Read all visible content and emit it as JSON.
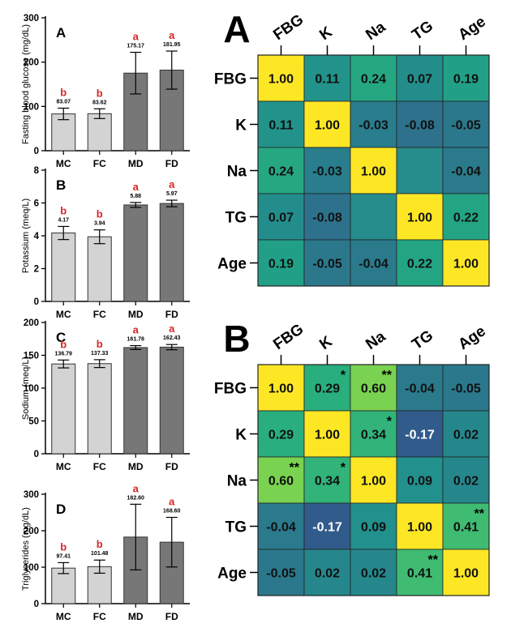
{
  "chart_data": [
    {
      "type": "bar",
      "panel": "A",
      "ylabel": "Fasting blood glucose (mg/dL)",
      "categories": [
        "MC",
        "FC",
        "MD",
        "FD"
      ],
      "values": [
        83.07,
        83.62,
        175.17,
        181.95
      ],
      "value_labels": [
        "83.07",
        "83.62",
        "175.17",
        "181.95"
      ],
      "errors": [
        13,
        11,
        47,
        43
      ],
      "letters": [
        "b",
        "b",
        "a",
        "a"
      ],
      "ylim": [
        0,
        300
      ],
      "yticks": [
        0,
        100,
        200,
        300
      ],
      "ytick_labels": [
        "0",
        "100",
        "200",
        "300"
      ],
      "bar_colors": [
        "#d3d3d3",
        "#d3d3d3",
        "#777777",
        "#777777"
      ]
    },
    {
      "type": "bar",
      "panel": "B",
      "ylabel": "Potassium (meq/L)",
      "categories": [
        "MC",
        "FC",
        "MD",
        "FD"
      ],
      "values": [
        4.17,
        3.94,
        5.88,
        5.97
      ],
      "value_labels": [
        "4.17",
        "3.94",
        "5.88",
        "5.97"
      ],
      "errors": [
        0.4,
        0.42,
        0.15,
        0.2
      ],
      "letters": [
        "b",
        "b",
        "a",
        "a"
      ],
      "ylim": [
        0,
        8
      ],
      "yticks": [
        0,
        2,
        4,
        6,
        8
      ],
      "ytick_labels": [
        "0",
        "2",
        "4",
        "6",
        "8"
      ],
      "bar_colors": [
        "#d3d3d3",
        "#d3d3d3",
        "#777777",
        "#777777"
      ]
    },
    {
      "type": "bar",
      "panel": "C",
      "ylabel": "Sodium (meq/L)",
      "categories": [
        "MC",
        "FC",
        "MD",
        "FD"
      ],
      "values": [
        136.79,
        137.33,
        161.78,
        162.43
      ],
      "value_labels": [
        "136.79",
        "137.33",
        "161.78",
        "162.43"
      ],
      "errors": [
        6,
        6,
        3,
        4
      ],
      "letters": [
        "b",
        "b",
        "a",
        "a"
      ],
      "ylim": [
        0,
        200
      ],
      "yticks": [
        0,
        50,
        100,
        150,
        200
      ],
      "ytick_labels": [
        "0",
        "50",
        "100",
        "150",
        "200"
      ],
      "bar_colors": [
        "#d3d3d3",
        "#d3d3d3",
        "#777777",
        "#777777"
      ]
    },
    {
      "type": "bar",
      "panel": "D",
      "ylabel": "Triglycerides (mg/dL)",
      "categories": [
        "MC",
        "FC",
        "MD",
        "FD"
      ],
      "values": [
        97.41,
        101.48,
        182.6,
        168.6
      ],
      "value_labels": [
        "97.41",
        "101.48",
        "182.60",
        "168.60"
      ],
      "errors": [
        15,
        18,
        90,
        68
      ],
      "letters": [
        "b",
        "b",
        "a",
        "a"
      ],
      "ylim": [
        0,
        300
      ],
      "yticks": [
        0,
        100,
        200,
        300
      ],
      "ytick_labels": [
        "0",
        "100",
        "200",
        "300"
      ],
      "bar_colors": [
        "#d3d3d3",
        "#d3d3d3",
        "#777777",
        "#777777"
      ]
    },
    {
      "type": "heatmap",
      "panel": "A",
      "labels": [
        "FBG",
        "K",
        "Na",
        "TG",
        "Age"
      ],
      "values": [
        [
          1.0,
          0.11,
          0.24,
          0.07,
          0.19
        ],
        [
          0.11,
          1.0,
          -0.03,
          -0.08,
          -0.05
        ],
        [
          0.24,
          -0.03,
          1.0,
          null,
          -0.04
        ],
        [
          0.07,
          -0.08,
          null,
          1.0,
          0.22
        ],
        [
          0.19,
          -0.05,
          -0.04,
          0.22,
          1.0
        ]
      ],
      "cell_labels": [
        [
          "1.00",
          "0.11",
          "0.24",
          "0.07",
          "0.19"
        ],
        [
          "0.11",
          "1.00",
          "-0.03",
          "-0.08",
          "-0.05"
        ],
        [
          "0.24",
          "-0.03",
          "1.00",
          "",
          "-0.04"
        ],
        [
          "0.07",
          "-0.08",
          "",
          "1.00",
          "0.22"
        ],
        [
          "0.19",
          "-0.05",
          "-0.04",
          "0.22",
          "1.00"
        ]
      ],
      "stars": [
        [
          "",
          "",
          "",
          "",
          ""
        ],
        [
          "",
          "",
          "",
          "",
          ""
        ],
        [
          "",
          "",
          "",
          "",
          ""
        ],
        [
          "",
          "",
          "",
          "",
          ""
        ],
        [
          "",
          "",
          "",
          "",
          ""
        ]
      ]
    },
    {
      "type": "heatmap",
      "panel": "B",
      "labels": [
        "FBG",
        "K",
        "Na",
        "TG",
        "Age"
      ],
      "values": [
        [
          1.0,
          0.29,
          0.6,
          -0.04,
          -0.05
        ],
        [
          0.29,
          1.0,
          0.34,
          -0.17,
          0.02
        ],
        [
          0.6,
          0.34,
          1.0,
          0.09,
          0.02
        ],
        [
          -0.04,
          -0.17,
          0.09,
          1.0,
          0.41
        ],
        [
          -0.05,
          0.02,
          0.02,
          0.41,
          1.0
        ]
      ],
      "cell_labels": [
        [
          "1.00",
          "0.29",
          "0.60",
          "-0.04",
          "-0.05"
        ],
        [
          "0.29",
          "1.00",
          "0.34",
          "-0.17",
          "0.02"
        ],
        [
          "0.60",
          "0.34",
          "1.00",
          "0.09",
          "0.02"
        ],
        [
          "-0.04",
          "-0.17",
          "0.09",
          "1.00",
          "0.41"
        ],
        [
          "-0.05",
          "0.02",
          "0.02",
          "0.41",
          "1.00"
        ]
      ],
      "stars": [
        [
          "",
          "*",
          "**",
          "",
          ""
        ],
        [
          "",
          "",
          "*",
          "",
          ""
        ],
        [
          "**",
          "*",
          "",
          "",
          ""
        ],
        [
          "",
          "",
          "",
          "",
          "**"
        ],
        [
          "",
          "",
          "",
          "**",
          ""
        ]
      ]
    }
  ],
  "colors": {
    "letter": "#d62728",
    "text": "#000000"
  }
}
